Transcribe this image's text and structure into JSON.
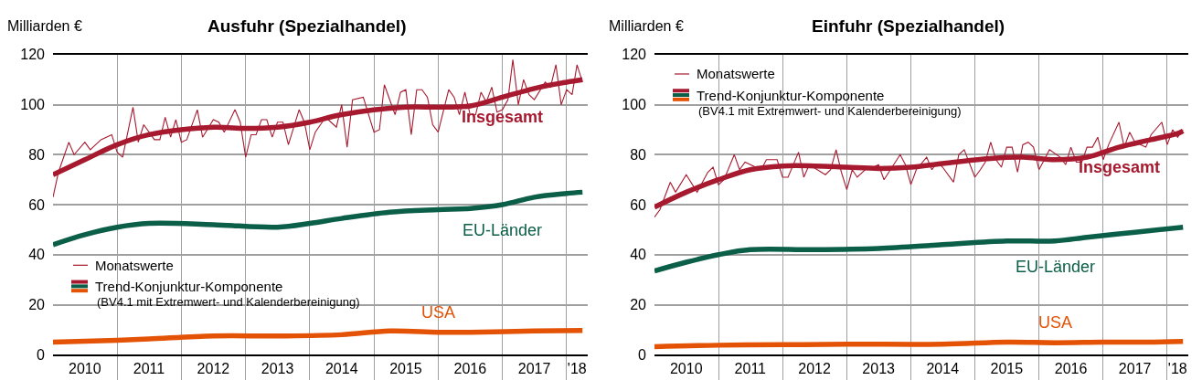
{
  "chart_data": [
    {
      "type": "line",
      "title": "Ausfuhr (Spezialhandel)",
      "ylabel": "Milliarden €",
      "xlim": [
        "2010-01",
        "2018-05"
      ],
      "ylim": [
        0,
        120
      ],
      "yticks": [
        0,
        20,
        40,
        60,
        80,
        100,
        120
      ],
      "xticks": [
        {
          "value": "2010-07",
          "label": "2010"
        },
        {
          "value": "2011-01",
          "label": null
        },
        {
          "value": "2011-07",
          "label": "2011"
        },
        {
          "value": "2012-01",
          "label": null
        },
        {
          "value": "2012-07",
          "label": "2012"
        },
        {
          "value": "2013-01",
          "label": null
        },
        {
          "value": "2013-07",
          "label": "2013"
        },
        {
          "value": "2014-01",
          "label": null
        },
        {
          "value": "2014-07",
          "label": "2014"
        },
        {
          "value": "2015-01",
          "label": null
        },
        {
          "value": "2015-07",
          "label": "2015"
        },
        {
          "value": "2016-01",
          "label": null
        },
        {
          "value": "2016-07",
          "label": "2016"
        },
        {
          "value": "2017-01",
          "label": null
        },
        {
          "value": "2017-07",
          "label": "2017"
        },
        {
          "value": "2018-01",
          "label": null
        },
        {
          "value": "2018-03",
          "label": "'18"
        }
      ],
      "grid": true,
      "legend": "bottom left",
      "marker": "none",
      "line_style": "solid",
      "annotations": [
        "Trend-Konjunktur-Komponente",
        "(BV4.1 mit Extremwert- und Kalenderbereinigung)"
      ],
      "series": [
        {
          "name": "Monatswerte",
          "color": "#a6192e",
          "x": [
            "2010-01",
            "2010-02",
            "2010-04",
            "2010-05",
            "2010-07",
            "2010-08",
            "2010-10",
            "2010-12",
            "2011-01",
            "2011-02",
            "2011-04",
            "2011-05",
            "2011-06",
            "2011-08",
            "2011-09",
            "2011-10",
            "2011-11",
            "2011-12",
            "2012-01",
            "2012-02",
            "2012-04",
            "2012-05",
            "2012-07",
            "2012-08",
            "2012-09",
            "2012-11",
            "2012-12",
            "2013-01",
            "2013-02",
            "2013-03",
            "2013-04",
            "2013-05",
            "2013-06",
            "2013-07",
            "2013-08",
            "2013-09",
            "2013-11",
            "2013-12",
            "2014-01",
            "2014-02",
            "2014-04",
            "2014-05",
            "2014-06",
            "2014-07",
            "2014-08",
            "2014-09",
            "2014-11",
            "2015-01",
            "2015-02",
            "2015-03",
            "2015-05",
            "2015-06",
            "2015-07",
            "2015-08",
            "2015-09",
            "2015-10",
            "2015-11",
            "2015-12",
            "2016-01",
            "2016-03",
            "2016-04",
            "2016-05",
            "2016-06",
            "2016-07",
            "2016-08",
            "2016-09",
            "2016-10",
            "2016-11",
            "2016-12",
            "2017-01",
            "2017-02",
            "2017-03",
            "2017-04",
            "2017-05",
            "2017-06",
            "2017-07",
            "2017-09",
            "2017-10",
            "2017-11",
            "2017-12",
            "2018-01",
            "2018-02",
            "2018-03",
            "2018-04"
          ],
          "values": [
            63,
            73,
            85,
            80,
            85,
            82,
            86,
            88,
            81,
            79,
            99,
            85,
            92,
            86,
            86,
            95,
            87,
            94,
            85,
            86,
            98,
            87,
            94,
            93,
            89,
            98,
            93,
            79,
            88,
            88,
            94,
            94,
            87,
            93,
            93,
            84,
            98,
            93,
            82,
            89,
            95,
            93,
            91,
            100,
            83,
            102,
            103,
            89,
            90,
            108,
            96,
            105,
            106,
            88,
            106,
            106,
            103,
            92,
            89,
            106,
            103,
            96,
            105,
            96,
            96,
            105,
            101,
            107,
            97,
            98,
            102,
            118,
            100,
            110,
            104,
            102,
            109,
            107,
            116,
            100,
            106,
            104,
            116,
            109
          ]
        },
        {
          "name": "Insgesamt",
          "color": "#a6192e",
          "x": [
            "2010-01",
            "2010-07",
            "2011-01",
            "2011-07",
            "2012-07",
            "2013-01",
            "2013-07",
            "2014-01",
            "2014-07",
            "2015-07",
            "2016-01",
            "2016-07",
            "2017-01",
            "2017-07",
            "2018-01",
            "2018-04"
          ],
          "values": [
            72,
            78,
            84,
            88,
            91,
            90.5,
            91,
            93,
            96,
            99,
            99,
            99.5,
            103,
            106.5,
            109,
            110
          ]
        },
        {
          "name": "EU-Länder",
          "color": "#0b5e47",
          "x": [
            "2010-01",
            "2010-07",
            "2011-01",
            "2011-07",
            "2012-07",
            "2013-07",
            "2014-01",
            "2014-07",
            "2015-04",
            "2016-01",
            "2016-07",
            "2017-01",
            "2017-07",
            "2018-01",
            "2018-04"
          ],
          "values": [
            44,
            48,
            51,
            52.5,
            52,
            51,
            52.5,
            54.5,
            57,
            58,
            58.5,
            60,
            63,
            64.5,
            65
          ]
        },
        {
          "name": "USA",
          "color": "#e35205",
          "x": [
            "2010-01",
            "2011-01",
            "2011-07",
            "2012-07",
            "2013-07",
            "2014-07",
            "2015-04",
            "2016-01",
            "2016-07",
            "2017-07",
            "2018-04"
          ],
          "values": [
            5,
            5.8,
            6.3,
            7.5,
            7.5,
            8,
            9.5,
            9,
            9,
            9.5,
            9.7
          ]
        }
      ]
    },
    {
      "type": "line",
      "title": "Einfuhr (Spezialhandel)",
      "ylabel": "Milliarden €",
      "xlim": [
        "2010-01",
        "2018-05"
      ],
      "ylim": [
        0,
        120
      ],
      "yticks": [
        0,
        20,
        40,
        60,
        80,
        100,
        120
      ],
      "xticks": [
        {
          "value": "2010-07",
          "label": "2010"
        },
        {
          "value": "2011-01",
          "label": null
        },
        {
          "value": "2011-07",
          "label": "2011"
        },
        {
          "value": "2012-01",
          "label": null
        },
        {
          "value": "2012-07",
          "label": "2012"
        },
        {
          "value": "2013-01",
          "label": null
        },
        {
          "value": "2013-07",
          "label": "2013"
        },
        {
          "value": "2014-01",
          "label": null
        },
        {
          "value": "2014-07",
          "label": "2014"
        },
        {
          "value": "2015-01",
          "label": null
        },
        {
          "value": "2015-07",
          "label": "2015"
        },
        {
          "value": "2016-01",
          "label": null
        },
        {
          "value": "2016-07",
          "label": "2016"
        },
        {
          "value": "2017-01",
          "label": null
        },
        {
          "value": "2017-07",
          "label": "2017"
        },
        {
          "value": "2018-01",
          "label": null
        },
        {
          "value": "2018-03",
          "label": "'18"
        }
      ],
      "grid": true,
      "legend": "top left",
      "marker": "none",
      "line_style": "solid",
      "annotations": [
        "Trend-Konjunktur-Komponente",
        "(BV4.1 mit Extremwert- und Kalenderbereinigung)"
      ],
      "series": [
        {
          "name": "Monatswerte",
          "color": "#a6192e",
          "x": [
            "2010-01",
            "2010-02",
            "2010-04",
            "2010-05",
            "2010-07",
            "2010-09",
            "2010-11",
            "2010-12",
            "2011-01",
            "2011-02",
            "2011-04",
            "2011-05",
            "2011-06",
            "2011-09",
            "2011-10",
            "2011-12",
            "2012-01",
            "2012-02",
            "2012-04",
            "2012-05",
            "2012-06",
            "2012-09",
            "2012-10",
            "2012-11",
            "2012-12",
            "2013-01",
            "2013-02",
            "2013-03",
            "2013-05",
            "2013-06",
            "2013-07",
            "2013-08",
            "2013-11",
            "2013-12",
            "2014-01",
            "2014-02",
            "2014-04",
            "2014-05",
            "2014-06",
            "2014-07",
            "2014-09",
            "2014-10",
            "2014-11",
            "2015-01",
            "2015-02",
            "2015-03",
            "2015-04",
            "2015-05",
            "2015-06",
            "2015-07",
            "2015-08",
            "2015-09",
            "2015-10",
            "2015-11",
            "2015-12",
            "2016-01",
            "2016-02",
            "2016-03",
            "2016-05",
            "2016-06",
            "2016-07",
            "2016-08",
            "2016-09",
            "2016-10",
            "2016-11",
            "2016-12",
            "2017-01",
            "2017-02",
            "2017-04",
            "2017-05",
            "2017-06",
            "2017-07",
            "2017-09",
            "2017-10",
            "2017-12",
            "2018-01",
            "2018-02",
            "2018-03",
            "2018-04"
          ],
          "values": [
            55,
            58,
            69,
            65,
            72,
            65,
            73,
            75,
            68,
            70,
            80,
            74,
            77,
            74,
            78,
            78,
            71,
            71,
            81,
            71,
            76,
            72,
            74,
            82,
            73,
            66,
            74,
            71,
            75,
            75,
            76,
            70,
            80,
            76,
            68,
            74,
            79,
            74,
            77,
            75,
            69,
            80,
            82,
            71,
            74,
            77,
            85,
            78,
            75,
            83,
            83,
            73,
            84,
            85,
            83,
            74,
            78,
            82,
            79,
            76,
            83,
            77,
            77,
            83,
            83,
            87,
            78,
            84,
            93,
            83,
            89,
            85,
            83,
            88,
            93,
            84,
            90,
            87,
            90
          ]
        },
        {
          "name": "Insgesamt",
          "color": "#a6192e",
          "x": [
            "2010-01",
            "2010-07",
            "2011-01",
            "2011-07",
            "2012-01",
            "2012-07",
            "2013-01",
            "2013-07",
            "2014-01",
            "2014-07",
            "2015-04",
            "2015-10",
            "2016-04",
            "2016-10",
            "2017-04",
            "2017-10",
            "2018-03",
            "2018-04"
          ],
          "values": [
            59,
            65,
            70,
            74,
            75.5,
            75.5,
            75,
            74.5,
            75,
            76.5,
            78.5,
            79,
            78,
            79,
            83,
            86,
            88.5,
            89.5
          ]
        },
        {
          "name": "EU-Länder",
          "color": "#0b5e47",
          "x": [
            "2010-01",
            "2010-07",
            "2011-01",
            "2011-07",
            "2012-07",
            "2013-07",
            "2014-07",
            "2015-07",
            "2016-04",
            "2016-10",
            "2017-07",
            "2018-04"
          ],
          "values": [
            33.5,
            37,
            40,
            42,
            42,
            42.5,
            44,
            45.5,
            45.5,
            47,
            49,
            51
          ]
        },
        {
          "name": "USA",
          "color": "#e35205",
          "x": [
            "2010-01",
            "2011-01",
            "2012-01",
            "2013-01",
            "2014-07",
            "2015-07",
            "2016-04",
            "2017-01",
            "2017-07",
            "2018-04"
          ],
          "values": [
            3.2,
            3.8,
            4,
            4.2,
            4.2,
            5,
            4.8,
            5,
            5,
            5.3
          ]
        }
      ]
    }
  ]
}
